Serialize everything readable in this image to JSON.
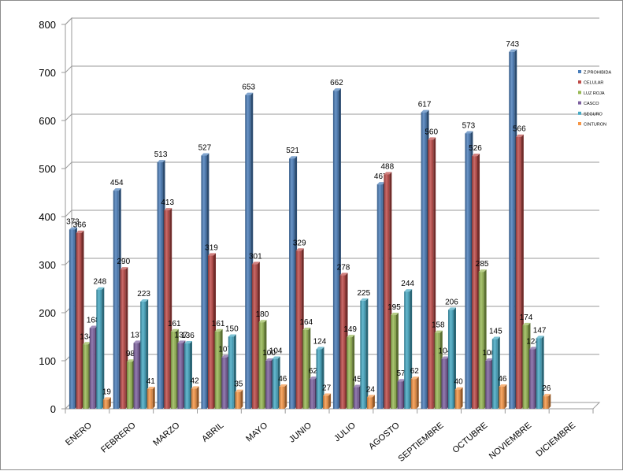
{
  "chart_data": {
    "type": "bar",
    "title": "",
    "xlabel": "",
    "ylabel": "",
    "ylim": [
      0,
      800
    ],
    "yticks": [
      0,
      100,
      200,
      300,
      400,
      500,
      600,
      700,
      800
    ],
    "grid": true,
    "legend_position": "right",
    "categories": [
      "ENERO",
      "FEBRERO",
      "MARZO",
      "ABRIL",
      "MAYO",
      "JUNIO",
      "JULIO",
      "AGOSTO",
      "SEPTIEMBRE",
      "OCTUBRE",
      "NOVIEMBRE",
      "DICIEMBRE"
    ],
    "series": [
      {
        "name": "Z.PROHIBIDA",
        "color": "#4a7ebb",
        "values": [
          373,
          454,
          513,
          527,
          653,
          521,
          662,
          467,
          617,
          573,
          743,
          null
        ]
      },
      {
        "name": "CELULAR",
        "color": "#be4b48",
        "values": [
          366,
          290,
          413,
          319,
          301,
          329,
          278,
          488,
          560,
          526,
          566,
          null
        ]
      },
      {
        "name": "LUZ ROJA",
        "color": "#98b954",
        "values": [
          134,
          98,
          161,
          161,
          180,
          164,
          149,
          195,
          158,
          285,
          174,
          null
        ]
      },
      {
        "name": "CASCO",
        "color": "#7d60a0",
        "values": [
          168,
          137,
          137,
          107,
          100,
          62,
          45,
          57,
          104,
          100,
          124,
          null
        ]
      },
      {
        "name": "SEGURO",
        "color": "#46aac5",
        "values": [
          248,
          223,
          136,
          150,
          104,
          124,
          225,
          244,
          206,
          145,
          147,
          null
        ]
      },
      {
        "name": "CINTURON",
        "color": "#f79646",
        "values": [
          19,
          41,
          42,
          35,
          46,
          27,
          24,
          62,
          40,
          46,
          26,
          null
        ]
      }
    ]
  }
}
